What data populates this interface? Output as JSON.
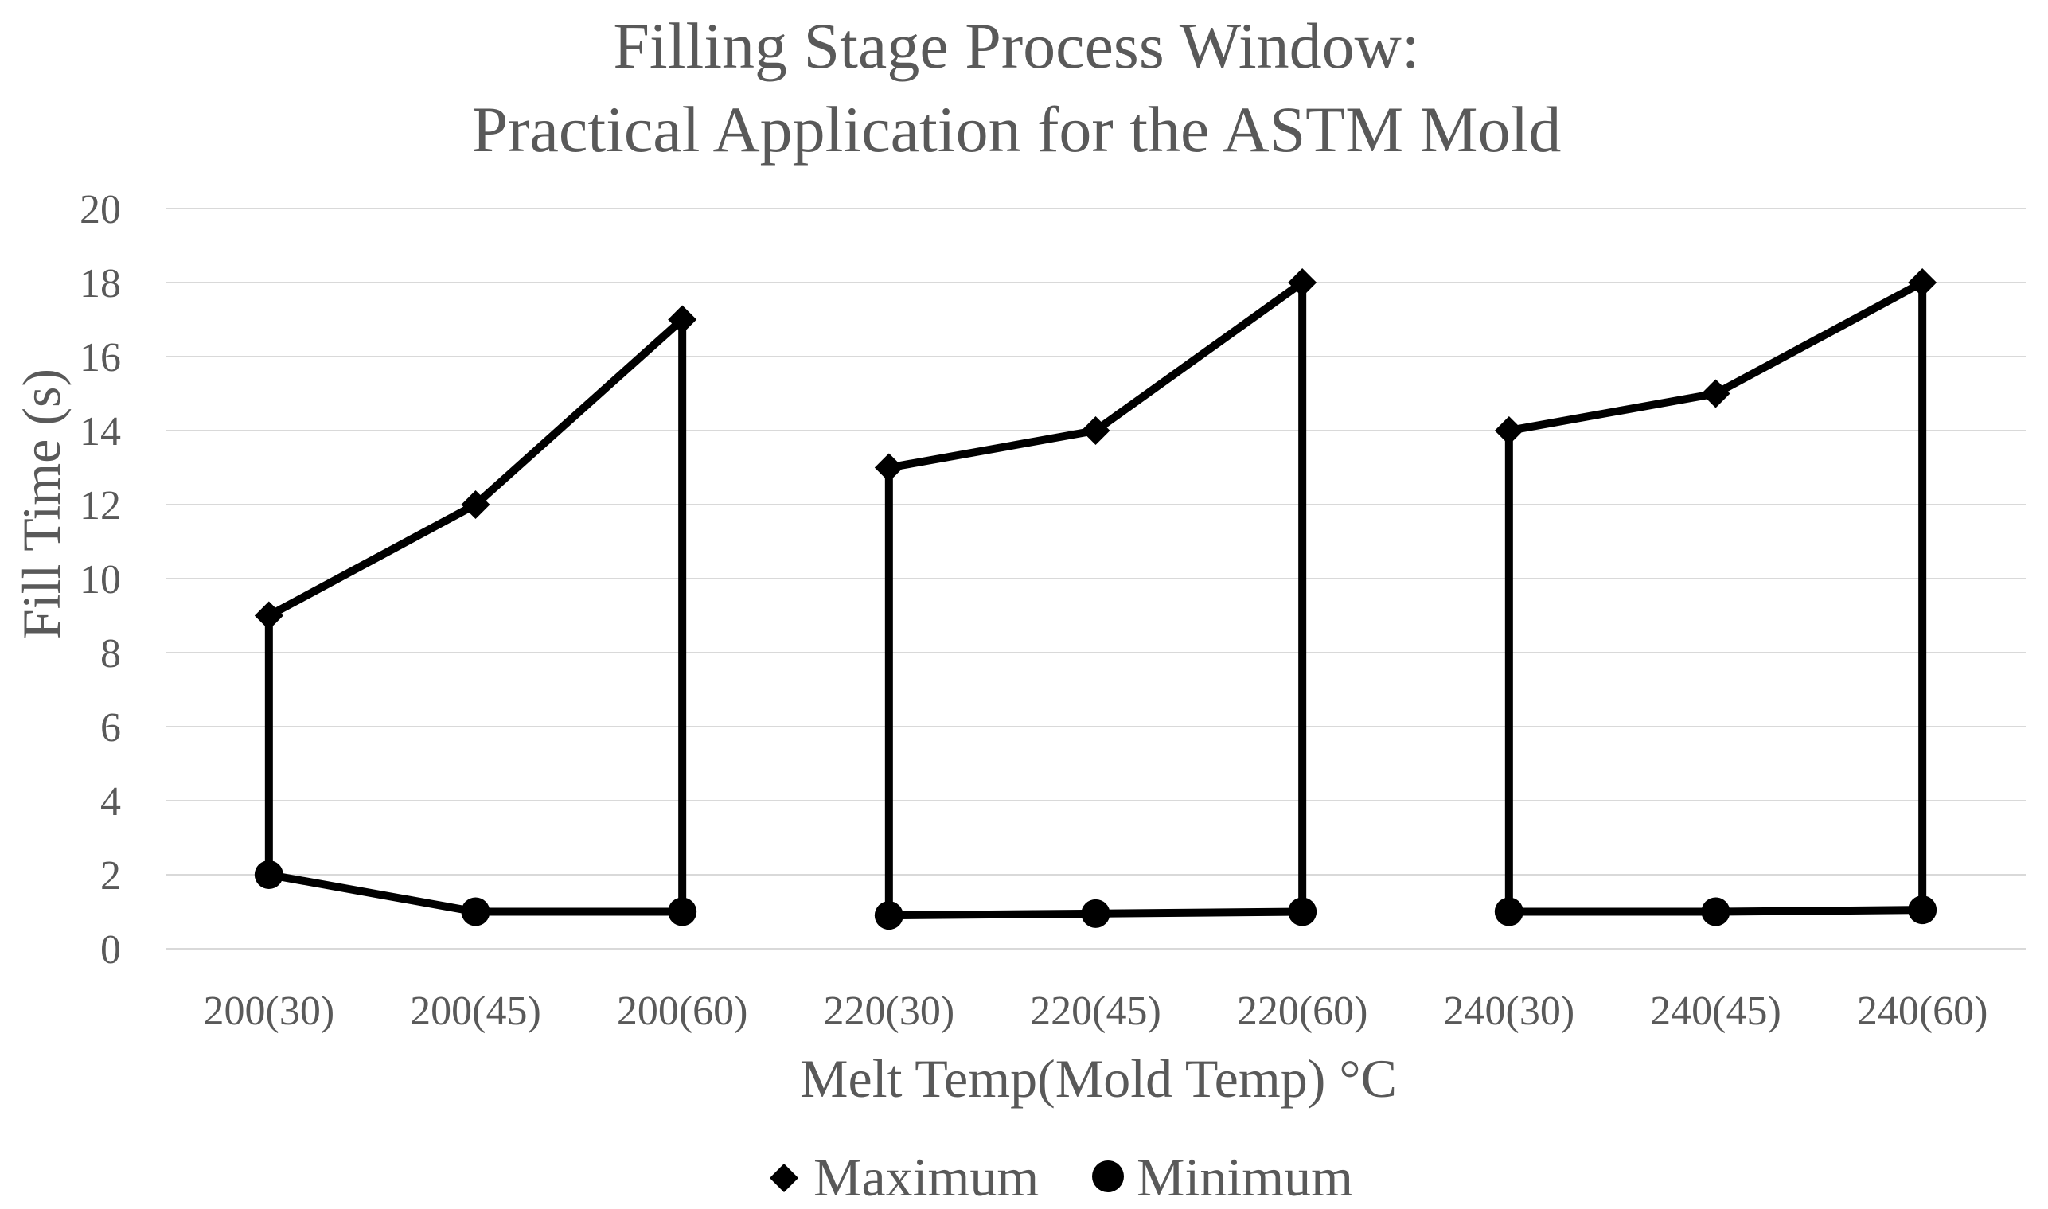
{
  "chart_data": {
    "type": "line",
    "title": [
      "Filling Stage Process Window:",
      "Practical Application for the ASTM Mold"
    ],
    "xlabel": "Melt Temp(Mold Temp) °C",
    "ylabel": "Fill Time (s)",
    "ylim": [
      0,
      20
    ],
    "yticks": [
      0,
      2,
      4,
      6,
      8,
      10,
      12,
      14,
      16,
      18,
      20
    ],
    "grid": true,
    "legend_position": "bottom",
    "categories": [
      "200(30)",
      "200(45)",
      "200(60)",
      "220(30)",
      "220(45)",
      "220(60)",
      "240(30)",
      "240(45)",
      "240(60)"
    ],
    "series": [
      {
        "name": "Maximum",
        "marker": "diamond",
        "color": "#000000",
        "values": [
          9,
          12,
          17,
          13,
          14,
          18,
          14,
          15,
          18
        ]
      },
      {
        "name": "Minimum",
        "marker": "circle",
        "color": "#000000",
        "values": [
          2,
          1,
          1,
          0.9,
          0.95,
          1,
          1,
          1,
          1.05
        ]
      }
    ],
    "groups": [
      [
        0,
        1,
        2
      ],
      [
        3,
        4,
        5
      ],
      [
        6,
        7,
        8
      ]
    ]
  }
}
